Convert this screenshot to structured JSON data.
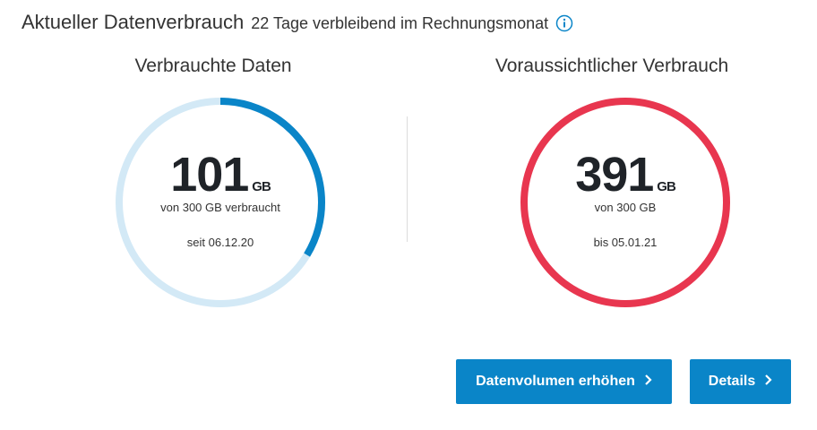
{
  "header": {
    "title": "Aktueller Datenverbrauch",
    "subtitle": "22 Tage verbleibend im Rechnungsmonat"
  },
  "used": {
    "heading": "Verbrauchte Daten",
    "value": "101",
    "unit": "GB",
    "description": "von 300 GB verbraucht",
    "date_text": "seit 06.12.20",
    "used_gb": 101,
    "total_gb": 300,
    "color": "#0a85c8",
    "track_color": "#d3e9f6"
  },
  "forecast": {
    "heading": "Voraussichtlicher Verbrauch",
    "value": "391",
    "unit": "GB",
    "description": "von 300 GB",
    "date_text": "bis 05.01.21",
    "color": "#e8364f"
  },
  "buttons": {
    "increase_label": "Datenvolumen erhöhen",
    "details_label": "Details"
  },
  "icons": {
    "info": "info-icon",
    "chevron": "chevron-right-icon"
  },
  "accent_color": "#0a85c8"
}
